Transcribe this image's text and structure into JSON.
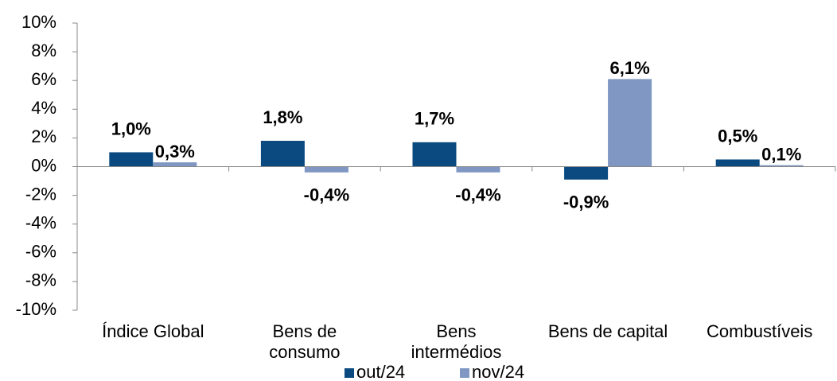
{
  "chart_data": {
    "type": "bar",
    "categories": [
      "Índice Global",
      "Bens de\nconsumo",
      "Bens\nintermédios",
      "Bens de capital",
      "Combustíveis"
    ],
    "series": [
      {
        "name": "out/24",
        "color": "#0b4a80",
        "values": [
          1.0,
          1.8,
          1.7,
          -0.9,
          0.5
        ],
        "value_labels": [
          "1,0%",
          "1,8%",
          "1,7%",
          "-0,9%",
          "0,5%"
        ]
      },
      {
        "name": "nov/24",
        "color": "#7f97c2",
        "values": [
          0.3,
          -0.4,
          -0.4,
          6.1,
          0.1
        ],
        "value_labels": [
          "0,3%",
          "-0,4%",
          "-0,4%",
          "6,1%",
          "0,1%"
        ]
      }
    ],
    "ylim": [
      -10,
      10
    ],
    "yticks": [
      {
        "value": -10,
        "label": "-10%"
      },
      {
        "value": -8,
        "label": "-8%"
      },
      {
        "value": -6,
        "label": "-6%"
      },
      {
        "value": -4,
        "label": "-4%"
      },
      {
        "value": -2,
        "label": "-2%"
      },
      {
        "value": 0,
        "label": "0%"
      },
      {
        "value": 2,
        "label": "2%"
      },
      {
        "value": 4,
        "label": "4%"
      },
      {
        "value": 6,
        "label": "6%"
      },
      {
        "value": 8,
        "label": "8%"
      },
      {
        "value": 10,
        "label": "10%"
      }
    ],
    "legend": "bottom"
  }
}
